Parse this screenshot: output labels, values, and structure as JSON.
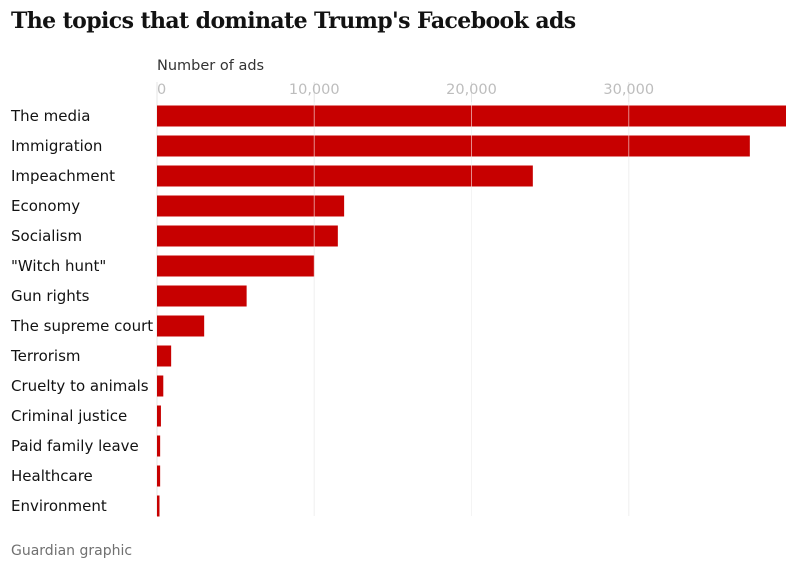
{
  "chart_data": {
    "type": "bar",
    "orientation": "horizontal",
    "title": "The topics that dominate Trump's Facebook ads",
    "xlabel": "Number of ads",
    "ylabel": "",
    "xlim": [
      0,
      40000
    ],
    "ticks": [
      0,
      10000,
      20000,
      30000
    ],
    "tick_labels": [
      "0",
      "10,000",
      "20,000",
      "30,000"
    ],
    "grid": true,
    "categories": [
      "The media",
      "Immigration",
      "Impeachment",
      "Economy",
      "Socialism",
      "\"Witch hunt\"",
      "Gun rights",
      "The supreme court",
      "Terrorism",
      "Cruelty to animals",
      "Criminal justice",
      "Paid family leave",
      "Healthcare",
      "Environment"
    ],
    "values": [
      40000,
      37700,
      23900,
      11900,
      11500,
      10000,
      5700,
      3000,
      900,
      400,
      250,
      200,
      200,
      150
    ],
    "bar_color": "#c70000",
    "source": "Guardian graphic"
  }
}
